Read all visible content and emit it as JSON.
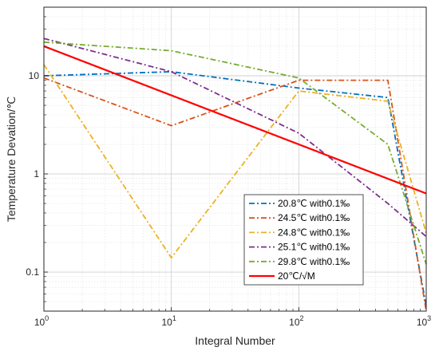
{
  "chart_data": {
    "type": "line",
    "xlabel": "Integral Number",
    "ylabel": "Temperature Devation/℃",
    "xscale": "log",
    "yscale": "log",
    "xlim": [
      1,
      1000
    ],
    "ylim": [
      0.04,
      50
    ],
    "x_ticks": [
      {
        "value": 1,
        "base": "10",
        "exp": "0"
      },
      {
        "value": 10,
        "base": "10",
        "exp": "1"
      },
      {
        "value": 100,
        "base": "10",
        "exp": "2"
      },
      {
        "value": 1000,
        "base": "10",
        "exp": "3"
      }
    ],
    "y_ticks": [
      {
        "value": 0.1,
        "label": "0.1"
      },
      {
        "value": 1,
        "label": "1"
      },
      {
        "value": 10,
        "label": "10"
      }
    ],
    "grid": true,
    "legend_position": "bottom-right",
    "series": [
      {
        "name": "20.8℃ with0.1‰",
        "color": "#0072BD",
        "dash": "dashdot",
        "x": [
          1,
          10,
          100,
          500,
          1000
        ],
        "y": [
          10,
          11,
          7.5,
          6,
          0.045
        ]
      },
      {
        "name": "24.5℃ with0.1‰",
        "color": "#D95319",
        "dash": "dashdot",
        "x": [
          1,
          10,
          100,
          500,
          1000
        ],
        "y": [
          9.5,
          3.1,
          9,
          9,
          0.04
        ]
      },
      {
        "name": "24.8℃ with0.1‰",
        "color": "#EDB120",
        "dash": "dashdot",
        "x": [
          1,
          10,
          100,
          500,
          1000
        ],
        "y": [
          13,
          0.14,
          7,
          5.5,
          0.25
        ]
      },
      {
        "name": "25.1℃ with0.1‰",
        "color": "#7E2F8E",
        "dash": "dashdot",
        "x": [
          1,
          10,
          100,
          500,
          1000
        ],
        "y": [
          24,
          11,
          2.6,
          0.5,
          0.23
        ]
      },
      {
        "name": "29.8℃ with0.1‰",
        "color": "#77AC30",
        "dash": "dashdot",
        "x": [
          1,
          10,
          100,
          500,
          1000
        ],
        "y": [
          22,
          18,
          9.5,
          2,
          0.12
        ]
      },
      {
        "name": "20℃/√M",
        "color": "#FF0000",
        "dash": "solid",
        "x": [
          1,
          1000
        ],
        "y": [
          20,
          0.632
        ]
      }
    ]
  }
}
